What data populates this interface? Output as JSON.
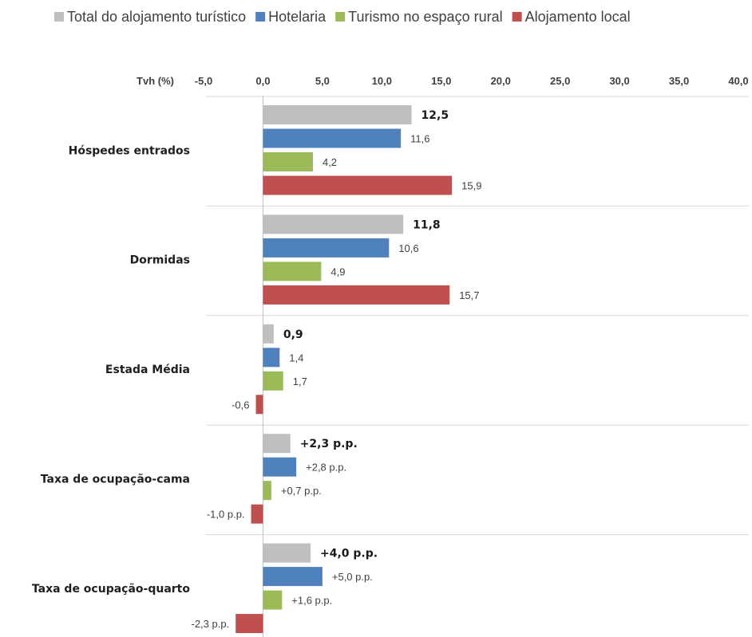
{
  "chart_data": {
    "type": "bar",
    "orientation": "horizontal",
    "axis_title": "Tvh (%)",
    "xlim": [
      -5,
      40
    ],
    "x_ticks": [
      "-5,0",
      "0,0",
      "5,0",
      "10,0",
      "15,0",
      "20,0",
      "25,0",
      "30,0",
      "35,0",
      "40,0"
    ],
    "grid": false,
    "legend_position": "top",
    "categories": [
      "Hóspedes entrados",
      "Dormidas",
      "Estada Média",
      "Taxa de ocupação-cama",
      "Taxa de ocupação-quarto"
    ],
    "series": [
      {
        "name": "Total do alojamento turístico",
        "color": "#bfbfbf",
        "values": [
          12.5,
          11.8,
          0.9,
          2.3,
          4.0
        ],
        "labels": [
          "12,5",
          "11,8",
          "0,9",
          "+2,3 p.p.",
          "+4,0 p.p."
        ],
        "bold_labels": true
      },
      {
        "name": "Hotelaria",
        "color": "#4f81bd",
        "values": [
          11.6,
          10.6,
          1.4,
          2.8,
          5.0
        ],
        "labels": [
          "11,6",
          "10,6",
          "1,4",
          "+2,8 p.p.",
          "+5,0 p.p."
        ],
        "bold_labels": false
      },
      {
        "name": "Turismo no espaço rural",
        "color": "#9bbb59",
        "values": [
          4.2,
          4.9,
          1.7,
          0.7,
          1.6
        ],
        "labels": [
          "4,2",
          "4,9",
          "1,7",
          "+0,7 p.p.",
          "+1,6 p.p."
        ],
        "bold_labels": false
      },
      {
        "name": "Alojamento local",
        "color": "#c0504d",
        "values": [
          15.9,
          15.7,
          -0.6,
          -1.0,
          -2.3
        ],
        "labels": [
          "15,9",
          "15,7",
          "-0,6",
          "-1,0 p.p.",
          "-2,3 p.p."
        ],
        "bold_labels": false
      }
    ]
  }
}
